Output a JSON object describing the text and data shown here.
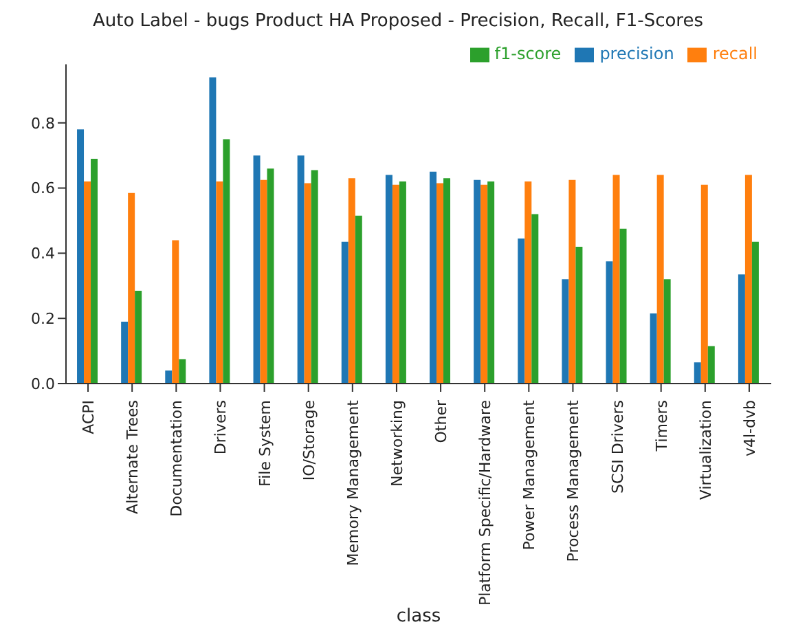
{
  "chart_data": {
    "type": "bar",
    "title": "Auto Label - bugs Product HA Proposed - Precision, Recall, F1-Scores",
    "xlabel": "class",
    "categories": [
      "ACPI",
      "Alternate Trees",
      "Documentation",
      "Drivers",
      "File System",
      "IO/Storage",
      "Memory Management",
      "Networking",
      "Other",
      "Platform Specific/Hardware",
      "Power Management",
      "Process Management",
      "SCSI Drivers",
      "Timers",
      "Virtualization",
      "v4l-dvb"
    ],
    "series": [
      {
        "name": "precision",
        "color": "#1f77b4",
        "values": [
          0.78,
          0.19,
          0.04,
          0.94,
          0.7,
          0.7,
          0.435,
          0.64,
          0.65,
          0.625,
          0.445,
          0.32,
          0.375,
          0.215,
          0.065,
          0.335
        ]
      },
      {
        "name": "recall",
        "color": "#ff7f0e",
        "values": [
          0.62,
          0.585,
          0.44,
          0.62,
          0.625,
          0.615,
          0.63,
          0.61,
          0.615,
          0.61,
          0.62,
          0.625,
          0.64,
          0.64,
          0.61,
          0.64
        ]
      },
      {
        "name": "f1-score",
        "color": "#2ca02c",
        "values": [
          0.69,
          0.285,
          0.075,
          0.75,
          0.66,
          0.655,
          0.515,
          0.62,
          0.63,
          0.62,
          0.52,
          0.42,
          0.475,
          0.32,
          0.115,
          0.435
        ]
      }
    ],
    "ylim": [
      0,
      0.98
    ],
    "yticks": [
      {
        "value": 0,
        "label": "0.0"
      },
      {
        "value": 0.2,
        "label": "0.2"
      },
      {
        "value": 0.4,
        "label": "0.4"
      },
      {
        "value": 0.6,
        "label": "0.6"
      },
      {
        "value": 0.8,
        "label": "0.8"
      }
    ],
    "grid": false,
    "legend": "top right"
  }
}
